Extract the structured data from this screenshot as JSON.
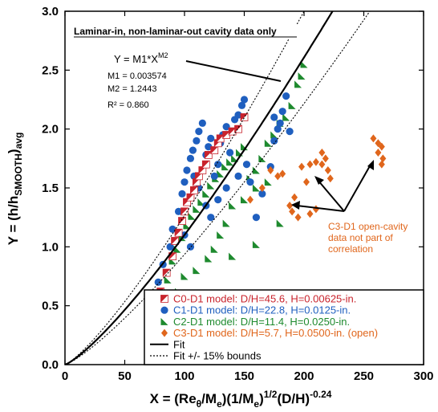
{
  "chart_data": {
    "type": "scatter",
    "title": "Laminar-in, non-laminar-out cavity data only",
    "xlabel": {
      "main": "X = (Re",
      "sub1": "θ",
      "mid1": "/M",
      "sub2": "e",
      "mid2": ")(1/M",
      "sub3": "e",
      "mid3": ")",
      "sup1": "1/2",
      "mid4": "(D/H)",
      "sup2": "-0.24"
    },
    "ylabel": {
      "main": "Y = (h/h",
      "sub": "SMOOTH",
      "end": ")",
      "sub2": "avg"
    },
    "xlim": [
      0,
      300
    ],
    "ylim": [
      0,
      3
    ],
    "x_ticks": [
      "0",
      "50",
      "100",
      "150",
      "200",
      "250",
      "300"
    ],
    "y_ticks": [
      "0.0",
      "0.5",
      "1.0",
      "1.5",
      "2.0",
      "2.5",
      "3.0"
    ],
    "equation": {
      "base": "Y = M1*X",
      "sup": "M2"
    },
    "fit_params": [
      "M1 = 0.003574",
      "M2 = 1.2443",
      "R² = 0.860"
    ],
    "fit": {
      "M1": 0.003574,
      "M2": 1.2443,
      "bound_fraction": 0.15
    },
    "note": [
      "C3-D1 open-cavity",
      "data not part of",
      "correlation"
    ],
    "legend": [
      {
        "label": "C0-D1 model: D/H=45.6, H=0.00625-in.",
        "color": "#c8232c",
        "marker": "half-square"
      },
      {
        "label": "C1-D1 model: D/H=22.8, H=0.0125-in.",
        "color": "#1f5fbf",
        "marker": "circle"
      },
      {
        "label": "C2-D1 model: D/H=11.4, H=0.0250-in.",
        "color": "#1e8a2e",
        "marker": "triangle"
      },
      {
        "label": "C3-D1 model: D/H=5.7, H=0.0500-in. (open)",
        "color": "#e0661c",
        "marker": "diamond"
      },
      {
        "label": "Fit",
        "color": "#000000",
        "marker": "solid-line"
      },
      {
        "label": "Fit +/- 15% bounds",
        "color": "#000000",
        "marker": "dotted-line"
      }
    ],
    "series": [
      {
        "name": "C0-D1 model: D/H=45.6, H=0.00625-in.",
        "color": "#c8232c",
        "points": [
          [
            80,
            0.62
          ],
          [
            85,
            0.78
          ],
          [
            90,
            0.92
          ],
          [
            92,
            1.05
          ],
          [
            95,
            1.12
          ],
          [
            98,
            1.22
          ],
          [
            100,
            1.3
          ],
          [
            102,
            1.38
          ],
          [
            105,
            1.42
          ],
          [
            108,
            1.48
          ],
          [
            110,
            1.55
          ],
          [
            112,
            1.6
          ],
          [
            115,
            1.65
          ],
          [
            118,
            1.7
          ],
          [
            120,
            1.78
          ],
          [
            125,
            1.82
          ],
          [
            128,
            1.88
          ],
          [
            130,
            1.92
          ],
          [
            135,
            1.95
          ],
          [
            140,
            1.98
          ],
          [
            145,
            2.0
          ],
          [
            150,
            2.1
          ]
        ]
      },
      {
        "name": "C1-D1 model: D/H=22.8, H=0.0125-in.",
        "color": "#1f5fbf",
        "points": [
          [
            78,
            0.7
          ],
          [
            82,
            0.85
          ],
          [
            88,
            1.0
          ],
          [
            90,
            1.15
          ],
          [
            95,
            1.3
          ],
          [
            98,
            1.45
          ],
          [
            100,
            1.55
          ],
          [
            102,
            1.65
          ],
          [
            105,
            1.75
          ],
          [
            107,
            1.82
          ],
          [
            110,
            1.9
          ],
          [
            112,
            1.98
          ],
          [
            115,
            2.05
          ],
          [
            118,
            1.78
          ],
          [
            120,
            1.85
          ],
          [
            122,
            1.92
          ],
          [
            125,
            1.6
          ],
          [
            128,
            1.7
          ],
          [
            130,
            1.88
          ],
          [
            132,
            1.95
          ],
          [
            135,
            2.02
          ],
          [
            138,
            1.8
          ],
          [
            140,
            1.98
          ],
          [
            142,
            2.08
          ],
          [
            145,
            2.12
          ],
          [
            148,
            2.2
          ],
          [
            150,
            2.25
          ],
          [
            152,
            1.7
          ],
          [
            155,
            1.55
          ],
          [
            160,
            1.25
          ],
          [
            165,
            1.45
          ],
          [
            172,
            1.68
          ],
          [
            175,
            1.9
          ],
          [
            178,
            2.0
          ],
          [
            180,
            2.05
          ],
          [
            182,
            2.15
          ],
          [
            185,
            2.28
          ],
          [
            188,
            1.98
          ],
          [
            175,
            2.1
          ],
          [
            108,
            1.6
          ],
          [
            112,
            1.5
          ],
          [
            118,
            1.35
          ],
          [
            122,
            1.25
          ],
          [
            128,
            1.4
          ],
          [
            135,
            1.5
          ],
          [
            145,
            1.6
          ],
          [
            100,
            1.1
          ],
          [
            105,
            1.0
          ]
        ]
      },
      {
        "name": "C2-D1 model: D/H=11.4, H=0.0250-in.",
        "color": "#1e8a2e",
        "points": [
          [
            82,
            0.55
          ],
          [
            86,
            0.72
          ],
          [
            90,
            0.88
          ],
          [
            94,
            0.98
          ],
          [
            98,
            1.08
          ],
          [
            102,
            1.18
          ],
          [
            106,
            1.26
          ],
          [
            110,
            1.32
          ],
          [
            114,
            1.38
          ],
          [
            118,
            1.45
          ],
          [
            122,
            1.52
          ],
          [
            126,
            1.58
          ],
          [
            130,
            1.62
          ],
          [
            134,
            1.68
          ],
          [
            138,
            1.72
          ],
          [
            142,
            1.75
          ],
          [
            146,
            1.8
          ],
          [
            150,
            1.85
          ],
          [
            155,
            1.58
          ],
          [
            160,
            1.65
          ],
          [
            165,
            1.75
          ],
          [
            170,
            1.88
          ],
          [
            175,
            1.95
          ],
          [
            180,
            2.05
          ],
          [
            185,
            2.1
          ],
          [
            190,
            2.2
          ],
          [
            195,
            2.38
          ],
          [
            198,
            2.45
          ],
          [
            200,
            2.55
          ],
          [
            170,
            1.55
          ],
          [
            160,
            1.5
          ],
          [
            150,
            1.4
          ],
          [
            140,
            1.35
          ],
          [
            135,
            1.2
          ],
          [
            130,
            1.1
          ],
          [
            125,
            0.98
          ],
          [
            120,
            0.9
          ],
          [
            110,
            0.8
          ],
          [
            100,
            0.75
          ],
          [
            95,
            0.62
          ],
          [
            140,
            0.92
          ],
          [
            160,
            1.02
          ],
          [
            180,
            1.2
          ]
        ]
      },
      {
        "name": "C3-D1 model: D/H=5.7, H=0.0500-in. (open)",
        "color": "#e0661c",
        "points": [
          [
            155,
            1.4
          ],
          [
            165,
            1.5
          ],
          [
            172,
            1.65
          ],
          [
            178,
            1.6
          ],
          [
            182,
            1.62
          ],
          [
            188,
            1.35
          ],
          [
            192,
            1.42
          ],
          [
            198,
            1.68
          ],
          [
            202,
            1.55
          ],
          [
            205,
            1.7
          ],
          [
            210,
            1.72
          ],
          [
            215,
            1.8
          ],
          [
            218,
            1.75
          ],
          [
            215,
            1.7
          ],
          [
            220,
            1.65
          ],
          [
            222,
            1.58
          ],
          [
            190,
            1.3
          ],
          [
            195,
            1.25
          ],
          [
            205,
            1.28
          ],
          [
            210,
            1.32
          ],
          [
            258,
            1.92
          ],
          [
            262,
            1.88
          ],
          [
            265,
            1.85
          ],
          [
            262,
            1.8
          ],
          [
            266,
            1.75
          ],
          [
            265,
            1.7
          ]
        ]
      }
    ]
  }
}
